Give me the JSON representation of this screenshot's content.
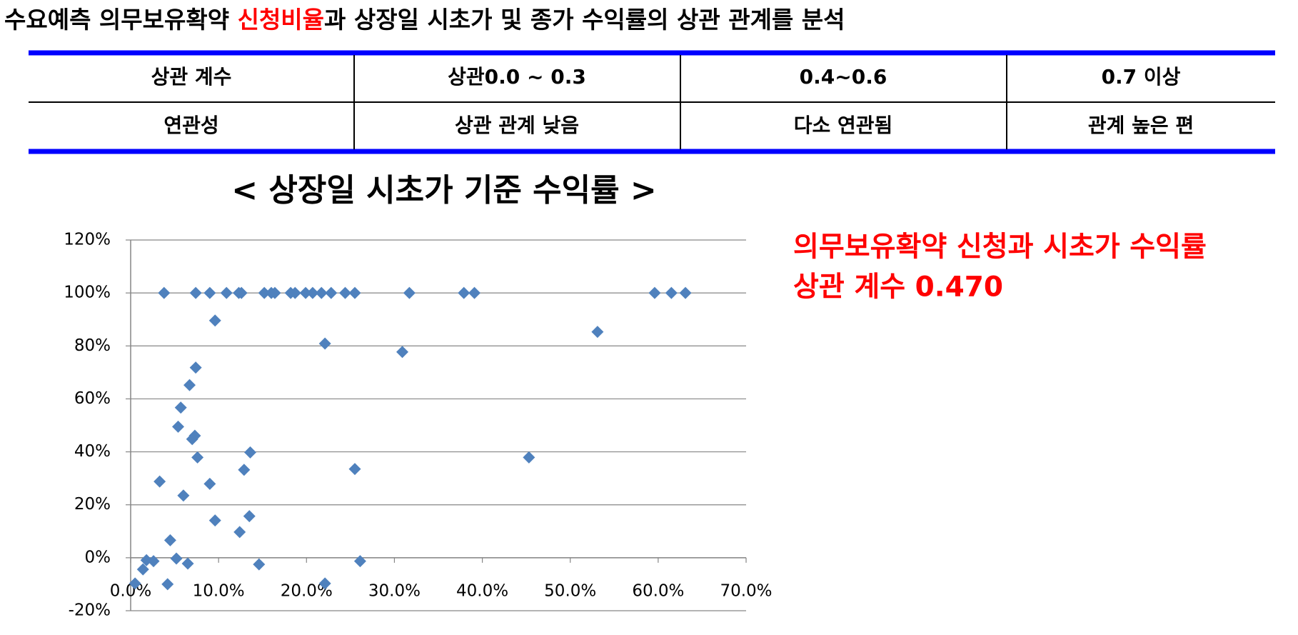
{
  "header": {
    "title_parts": [
      "수요예측 의무보유확약 ",
      "신청비율",
      "과 상장일 시초가 및 종가 수익률의 상관 관계를 분석"
    ]
  },
  "table": {
    "rows": [
      [
        "상관 계수",
        "상관0.0 ~ 0.3",
        "0.4~0.6",
        "0.7 이상"
      ],
      [
        "연관성",
        "상관 관계 낮음",
        "다소 연관됨",
        "관계 높은 편"
      ]
    ]
  },
  "annotation": {
    "lines": [
      "의무보유확약 신청과 시초가 수익률",
      "상관 계수 0.470"
    ]
  },
  "chart_data": {
    "type": "scatter",
    "title": "< 상장일 시초가 기준 수익률 >",
    "color": "#4f81bd",
    "grid": true,
    "x": [
      0.5,
      1.4,
      1.8,
      2.6,
      3.3,
      3.8,
      4.2,
      4.5,
      5.2,
      5.4,
      5.7,
      6.0,
      6.5,
      6.7,
      7.0,
      7.3,
      7.4,
      7.4,
      7.6,
      9.0,
      9.0,
      9.6,
      9.6,
      10.9,
      12.3,
      12.6,
      12.4,
      12.9,
      13.5,
      13.6,
      14.6,
      15.2,
      16.0,
      16.4,
      18.2,
      18.7,
      19.9,
      20.7,
      21.7,
      22.1,
      22.1,
      22.8,
      24.4,
      25.5,
      25.5,
      26.1,
      30.9,
      31.7,
      37.9,
      39.1,
      45.3,
      53.1,
      59.6,
      61.5,
      63.1
    ],
    "values": [
      -9.7,
      -4.4,
      -0.9,
      -1.3,
      28.8,
      100,
      -10,
      6.6,
      -0.3,
      49.5,
      56.7,
      23.5,
      -2.2,
      65.2,
      44.8,
      46.1,
      71.8,
      100,
      37.9,
      100,
      27.9,
      89.6,
      14.1,
      100,
      100,
      100,
      9.7,
      33.2,
      15.7,
      39.8,
      -2.5,
      100,
      100,
      100,
      100,
      100,
      100,
      100,
      100,
      80.9,
      -9.7,
      100,
      100,
      100,
      33.5,
      -1.3,
      77.7,
      100,
      100,
      100,
      37.9,
      85.3,
      100,
      100,
      100
    ],
    "xlim": [
      0,
      70
    ],
    "ylim": [
      -20,
      120
    ],
    "xticks": [
      {
        "value": 0,
        "label": "0.0%"
      },
      {
        "value": 10,
        "label": "10.0%"
      },
      {
        "value": 20,
        "label": "20.0%"
      },
      {
        "value": 30,
        "label": "30.0%"
      },
      {
        "value": 40,
        "label": "40.0%"
      },
      {
        "value": 50,
        "label": "50.0%"
      },
      {
        "value": 60,
        "label": "60.0%"
      },
      {
        "value": 70,
        "label": "70.0%"
      }
    ],
    "yticks": [
      {
        "value": -20,
        "label": "-20%"
      },
      {
        "value": 0,
        "label": "0%"
      },
      {
        "value": 20,
        "label": "20%"
      },
      {
        "value": 40,
        "label": "40%"
      },
      {
        "value": 60,
        "label": "60%"
      },
      {
        "value": 80,
        "label": "80%"
      },
      {
        "value": 100,
        "label": "100%"
      },
      {
        "value": 120,
        "label": "120%"
      }
    ]
  }
}
